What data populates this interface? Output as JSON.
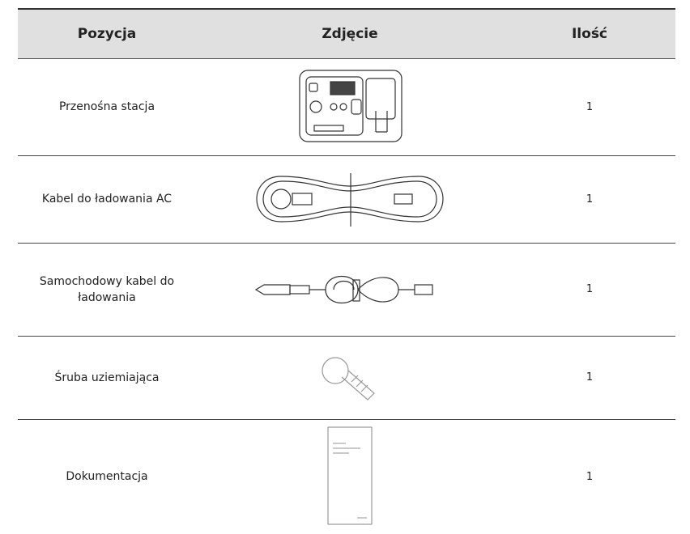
{
  "table": {
    "header": [
      "Pozycja",
      "Zdjęcie",
      "Ilość"
    ],
    "rows": [
      {
        "item": "Przenośna stacja",
        "quantity": 1
      },
      {
        "item": "Kabel do ładowania AC",
        "quantity": 1
      },
      {
        "item": "Samochodowy kabel do ładowania",
        "quantity": 1
      },
      {
        "item": "Śruba uziemiająca",
        "quantity": 1
      },
      {
        "item": "Dokumentacja",
        "quantity": 1
      }
    ]
  }
}
